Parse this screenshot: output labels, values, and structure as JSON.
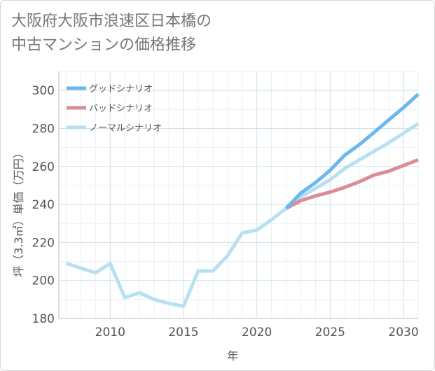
{
  "chart_data": {
    "type": "line",
    "title_lines": [
      "大阪府大阪市浪速区日本橋の",
      "中古マンションの価格推移"
    ],
    "xlabel": "年",
    "ylabel": "坪（3.3㎡）単価（万円）",
    "xlim": [
      2006.5,
      2031
    ],
    "ylim": [
      180,
      310
    ],
    "xticks": [
      2010,
      2015,
      2020,
      2025,
      2030
    ],
    "yticks": [
      180,
      200,
      220,
      240,
      260,
      280,
      300
    ],
    "grid": true,
    "legend_position": "top-left",
    "series": [
      {
        "name": "グッドシナリオ",
        "color": "#6cb8ec",
        "x": [
          2022,
          2023,
          2024,
          2025,
          2026,
          2027,
          2028,
          2029,
          2030,
          2031
        ],
        "y": [
          238,
          246,
          251.5,
          258,
          266,
          271.5,
          278,
          284.5,
          291,
          298
        ]
      },
      {
        "name": "バッドシナリオ",
        "color": "#dc8c96",
        "x": [
          2022,
          2023,
          2024,
          2025,
          2026,
          2027,
          2028,
          2029,
          2030,
          2031
        ],
        "y": [
          238,
          242,
          244.5,
          246.5,
          249,
          252,
          255.5,
          257.5,
          260.5,
          263.5
        ]
      },
      {
        "name": "ノーマルシナリオ",
        "color": "#b8e0f0",
        "x": [
          2007,
          2008,
          2009,
          2010,
          2011,
          2012,
          2013,
          2014,
          2015,
          2016,
          2017,
          2018,
          2019,
          2020,
          2021,
          2022,
          2023,
          2024,
          2025,
          2026,
          2027,
          2028,
          2029,
          2030,
          2031
        ],
        "y": [
          209,
          206.5,
          204,
          209,
          191,
          193.5,
          190,
          188,
          186.5,
          205,
          205,
          213,
          225,
          226.5,
          232,
          238,
          244,
          248.5,
          253,
          259,
          263.5,
          268,
          272.5,
          277.5,
          282.5
        ]
      }
    ]
  }
}
